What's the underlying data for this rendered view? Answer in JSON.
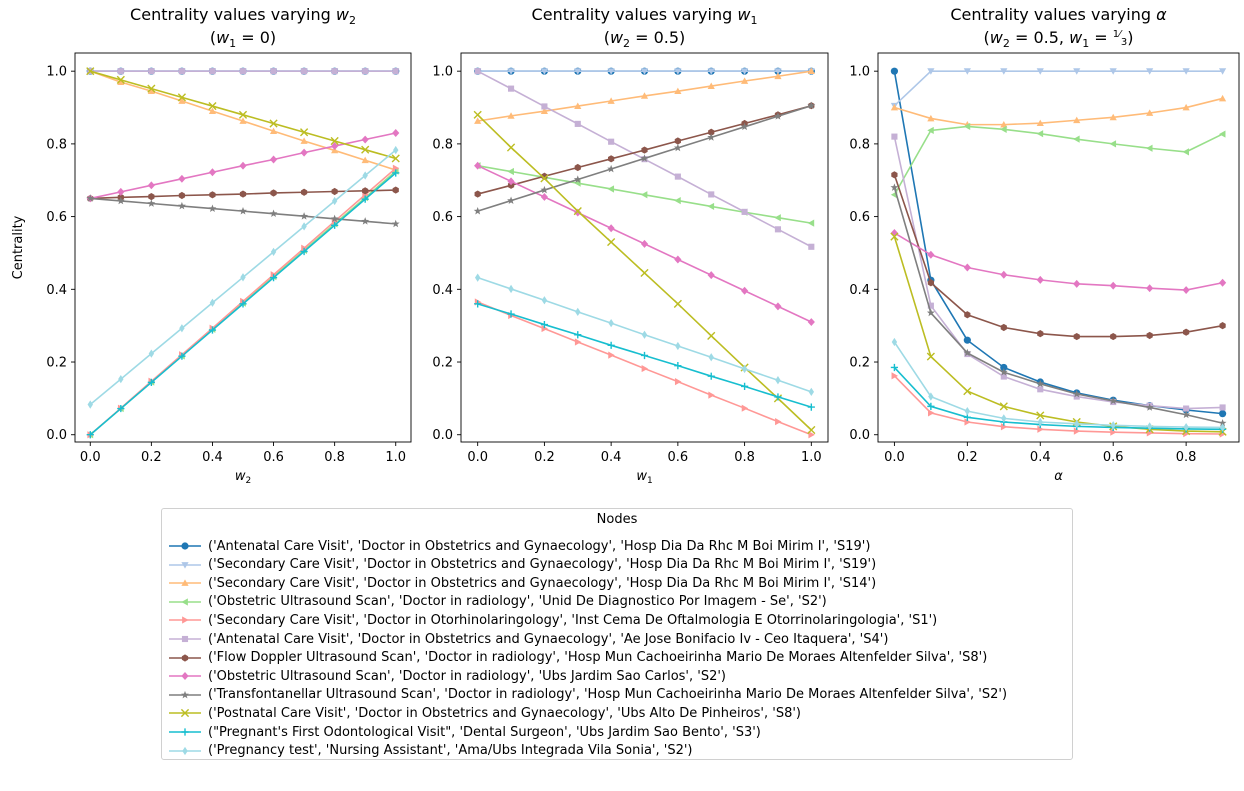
{
  "series_names": [
    "('Antenatal Care Visit', 'Doctor in Obstetrics and Gynaecology', 'Hosp Dia Da Rhc M Boi Mirim I', 'S19')",
    "('Secondary Care Visit', 'Doctor in Obstetrics and Gynaecology', 'Hosp Dia Da Rhc M Boi Mirim I', 'S19')",
    "('Secondary Care Visit', 'Doctor in Obstetrics and Gynaecology', 'Hosp Dia Da Rhc M Boi Mirim I', 'S14')",
    "('Obstetric Ultrasound Scan', 'Doctor in radiology', 'Unid De Diagnostico Por Imagem - Se', 'S2')",
    "('Secondary Care Visit', 'Doctor in Otorhinolaringology', 'Inst Cema De Oftalmologia E Otorrinolaringologia', 'S1')",
    "('Antenatal Care Visit', 'Doctor in Obstetrics and Gynaecology', 'Ae Jose Bonifacio Iv - Ceo Itaquera', 'S4')",
    "('Flow Doppler Ultrasound Scan', 'Doctor in radiology', 'Hosp Mun Cachoeirinha Mario De Moraes Altenfelder Silva', 'S8')",
    "('Obstetric Ultrasound Scan', 'Doctor in radiology', 'Ubs Jardim Sao Carlos', 'S2')",
    "('Transfontanellar Ultrasound Scan', 'Doctor in radiology', 'Hosp Mun Cachoeirinha Mario De Moraes Altenfelder Silva', 'S2')",
    "('Postnatal Care Visit', 'Doctor in Obstetrics and Gynaecology', 'Ubs Alto De Pinheiros', 'S8')",
    "(\"Pregnant's First Odontological Visit\", 'Dental Surgeon', 'Ubs Jardim Sao Bento', 'S3')",
    "('Pregnancy test', 'Nursing Assistant', 'Ama/Ubs Integrada Vila Sonia', 'S2')"
  ],
  "series_colors": [
    "#1f77b4",
    "#aec7e8",
    "#ffbb78",
    "#98df8a",
    "#ff9896",
    "#c5b0d5",
    "#8c564b",
    "#e377c2",
    "#7f7f7f",
    "#bcbd22",
    "#17becf",
    "#9edae5"
  ],
  "series_markers": [
    "circle",
    "triangle-down",
    "triangle-up",
    "triangle-left",
    "triangle-right",
    "square",
    "hexagon",
    "diamond",
    "star",
    "x",
    "plus",
    "thin-diamond"
  ],
  "legend": {
    "title": "Nodes",
    "placement": "below"
  },
  "chart_data": [
    {
      "type": "line",
      "title_line1": "Centrality values varying ",
      "title_var": "w",
      "title_sub": "2",
      "title_line2": "(w",
      "title_line2_sub": "1",
      "title_line2_rest": " = 0)",
      "xlabel": "w",
      "xlabel_sub": "2",
      "ylabel": "Centrality",
      "xlim": [
        -0.05,
        1.05
      ],
      "ylim": [
        -0.02,
        1.05
      ],
      "xticks": [
        0.0,
        0.2,
        0.4,
        0.6,
        0.8,
        1.0
      ],
      "xtick_labels": [
        "0.0",
        "0.2",
        "0.4",
        "0.6",
        "0.8",
        "1.0"
      ],
      "yticks": [
        0.0,
        0.2,
        0.4,
        0.6,
        0.8,
        1.0
      ],
      "ytick_labels": [
        "0.0",
        "0.2",
        "0.4",
        "0.6",
        "0.8",
        "1.0"
      ],
      "x": [
        0.0,
        0.1,
        0.2,
        0.3,
        0.4,
        0.5,
        0.6,
        0.7,
        0.8,
        0.9,
        1.0
      ],
      "series": [
        {
          "values": [
            1.0,
            1.0,
            1.0,
            1.0,
            1.0,
            1.0,
            1.0,
            1.0,
            1.0,
            1.0,
            1.0
          ]
        },
        {
          "values": [
            1.0,
            1.0,
            1.0,
            1.0,
            1.0,
            1.0,
            1.0,
            1.0,
            1.0,
            1.0,
            1.0
          ]
        },
        {
          "values": [
            1.0,
            0.97,
            0.945,
            0.918,
            0.89,
            0.863,
            0.835,
            0.808,
            0.782,
            0.755,
            0.728
          ]
        },
        {
          "values": [
            0.0,
            0.072,
            0.145,
            0.217,
            0.29,
            0.362,
            0.435,
            0.507,
            0.58,
            0.652,
            0.725
          ]
        },
        {
          "values": [
            0.0,
            0.073,
            0.147,
            0.22,
            0.293,
            0.367,
            0.44,
            0.513,
            0.587,
            0.66,
            0.733
          ]
        },
        {
          "values": [
            1.0,
            1.0,
            1.0,
            1.0,
            1.0,
            1.0,
            1.0,
            1.0,
            1.0,
            1.0,
            1.0
          ]
        },
        {
          "values": [
            0.65,
            0.653,
            0.655,
            0.658,
            0.66,
            0.662,
            0.665,
            0.667,
            0.669,
            0.671,
            0.673
          ]
        },
        {
          "values": [
            0.65,
            0.668,
            0.686,
            0.704,
            0.722,
            0.74,
            0.757,
            0.776,
            0.794,
            0.812,
            0.83
          ]
        },
        {
          "values": [
            0.65,
            0.643,
            0.636,
            0.629,
            0.622,
            0.615,
            0.608,
            0.601,
            0.594,
            0.587,
            0.58
          ]
        },
        {
          "values": [
            1.0,
            0.976,
            0.952,
            0.928,
            0.904,
            0.88,
            0.856,
            0.832,
            0.808,
            0.784,
            0.76
          ]
        },
        {
          "values": [
            0.0,
            0.072,
            0.144,
            0.216,
            0.288,
            0.36,
            0.432,
            0.504,
            0.576,
            0.648,
            0.72
          ]
        },
        {
          "values": [
            0.083,
            0.153,
            0.223,
            0.293,
            0.363,
            0.433,
            0.503,
            0.573,
            0.643,
            0.713,
            0.783
          ]
        }
      ]
    },
    {
      "type": "line",
      "title_line1": "Centrality values varying ",
      "title_var": "w",
      "title_sub": "1",
      "title_line2": "(w",
      "title_line2_sub": "2",
      "title_line2_rest": " = 0.5)",
      "xlabel": "w",
      "xlabel_sub": "1",
      "ylabel": "",
      "xlim": [
        -0.05,
        1.05
      ],
      "ylim": [
        -0.02,
        1.05
      ],
      "xticks": [
        0.0,
        0.2,
        0.4,
        0.6,
        0.8,
        1.0
      ],
      "xtick_labels": [
        "0.0",
        "0.2",
        "0.4",
        "0.6",
        "0.8",
        "1.0"
      ],
      "yticks": [
        0.0,
        0.2,
        0.4,
        0.6,
        0.8,
        1.0
      ],
      "ytick_labels": [
        "0.0",
        "0.2",
        "0.4",
        "0.6",
        "0.8",
        "1.0"
      ],
      "x": [
        0.0,
        0.1,
        0.2,
        0.3,
        0.4,
        0.5,
        0.6,
        0.7,
        0.8,
        0.9,
        1.0
      ],
      "series": [
        {
          "values": [
            1.0,
            1.0,
            1.0,
            1.0,
            1.0,
            1.0,
            1.0,
            1.0,
            1.0,
            1.0,
            1.0
          ]
        },
        {
          "values": [
            1.0,
            1.0,
            1.0,
            1.0,
            1.0,
            1.0,
            1.0,
            1.0,
            1.0,
            1.0,
            1.0
          ]
        },
        {
          "values": [
            0.863,
            0.877,
            0.89,
            0.904,
            0.918,
            0.932,
            0.945,
            0.959,
            0.973,
            0.986,
            1.0
          ]
        },
        {
          "values": [
            0.74,
            0.724,
            0.708,
            0.692,
            0.676,
            0.66,
            0.644,
            0.628,
            0.612,
            0.597,
            0.582
          ]
        },
        {
          "values": [
            0.365,
            0.328,
            0.292,
            0.255,
            0.219,
            0.182,
            0.146,
            0.109,
            0.073,
            0.036,
            0.0
          ]
        },
        {
          "values": [
            1.0,
            0.952,
            0.903,
            0.855,
            0.806,
            0.758,
            0.71,
            0.661,
            0.613,
            0.565,
            0.517
          ]
        },
        {
          "values": [
            0.662,
            0.686,
            0.711,
            0.735,
            0.759,
            0.783,
            0.808,
            0.832,
            0.856,
            0.88,
            0.905
          ]
        },
        {
          "values": [
            0.74,
            0.697,
            0.654,
            0.611,
            0.568,
            0.525,
            0.482,
            0.439,
            0.396,
            0.353,
            0.31
          ]
        },
        {
          "values": [
            0.615,
            0.644,
            0.673,
            0.702,
            0.731,
            0.76,
            0.789,
            0.818,
            0.847,
            0.876,
            0.905
          ]
        },
        {
          "values": [
            0.88,
            0.79,
            0.705,
            0.615,
            0.53,
            0.445,
            0.36,
            0.272,
            0.185,
            0.1,
            0.013
          ]
        },
        {
          "values": [
            0.36,
            0.332,
            0.303,
            0.275,
            0.246,
            0.218,
            0.19,
            0.161,
            0.133,
            0.104,
            0.076
          ]
        },
        {
          "values": [
            0.432,
            0.401,
            0.37,
            0.338,
            0.307,
            0.275,
            0.244,
            0.213,
            0.181,
            0.15,
            0.118
          ]
        }
      ]
    },
    {
      "type": "line",
      "title_line1": "Centrality values varying ",
      "title_var": "α",
      "title_sub": "",
      "title_line2": "(w",
      "title_line2_sub": "2",
      "title_line2_rest": " = 0.5, w",
      "title_line2_sub2": "1",
      "title_line2_rest2": " = ",
      "title_frac_num": "1",
      "title_frac_den": "3",
      "title_line2_end": ")",
      "xlabel": "α",
      "xlabel_sub": "",
      "ylabel": "",
      "xlim": [
        -0.045,
        0.945
      ],
      "ylim": [
        -0.02,
        1.05
      ],
      "xticks": [
        0.0,
        0.2,
        0.4,
        0.6,
        0.8
      ],
      "xtick_labels": [
        "0.0",
        "0.2",
        "0.4",
        "0.6",
        "0.8"
      ],
      "yticks": [
        0.0,
        0.2,
        0.4,
        0.6,
        0.8,
        1.0
      ],
      "ytick_labels": [
        "0.0",
        "0.2",
        "0.4",
        "0.6",
        "0.8",
        "1.0"
      ],
      "x": [
        0.0,
        0.1,
        0.2,
        0.3,
        0.4,
        0.5,
        0.6,
        0.7,
        0.8,
        0.9
      ],
      "series": [
        {
          "values": [
            1.0,
            0.425,
            0.26,
            0.185,
            0.145,
            0.115,
            0.095,
            0.08,
            0.068,
            0.058
          ]
        },
        {
          "values": [
            0.905,
            1.0,
            1.0,
            1.0,
            1.0,
            1.0,
            1.0,
            1.0,
            1.0,
            1.0
          ]
        },
        {
          "values": [
            0.9,
            0.87,
            0.853,
            0.853,
            0.857,
            0.865,
            0.873,
            0.885,
            0.9,
            0.925
          ]
        },
        {
          "values": [
            0.66,
            0.837,
            0.848,
            0.84,
            0.828,
            0.813,
            0.8,
            0.788,
            0.778,
            0.827
          ]
        },
        {
          "values": [
            0.162,
            0.06,
            0.035,
            0.022,
            0.015,
            0.01,
            0.007,
            0.005,
            0.003,
            0.002
          ]
        },
        {
          "values": [
            0.82,
            0.355,
            0.222,
            0.16,
            0.125,
            0.105,
            0.09,
            0.08,
            0.072,
            0.075
          ]
        },
        {
          "values": [
            0.715,
            0.418,
            0.33,
            0.295,
            0.278,
            0.27,
            0.27,
            0.273,
            0.282,
            0.3
          ]
        },
        {
          "values": [
            0.555,
            0.495,
            0.46,
            0.44,
            0.426,
            0.415,
            0.41,
            0.403,
            0.398,
            0.418
          ]
        },
        {
          "values": [
            0.68,
            0.335,
            0.225,
            0.172,
            0.14,
            0.112,
            0.093,
            0.075,
            0.055,
            0.032
          ]
        },
        {
          "values": [
            0.545,
            0.215,
            0.12,
            0.078,
            0.053,
            0.035,
            0.023,
            0.015,
            0.01,
            0.008
          ]
        },
        {
          "values": [
            0.185,
            0.078,
            0.048,
            0.035,
            0.028,
            0.023,
            0.02,
            0.018,
            0.016,
            0.015
          ]
        },
        {
          "values": [
            0.255,
            0.105,
            0.065,
            0.045,
            0.035,
            0.03,
            0.026,
            0.023,
            0.021,
            0.02
          ]
        }
      ]
    }
  ]
}
